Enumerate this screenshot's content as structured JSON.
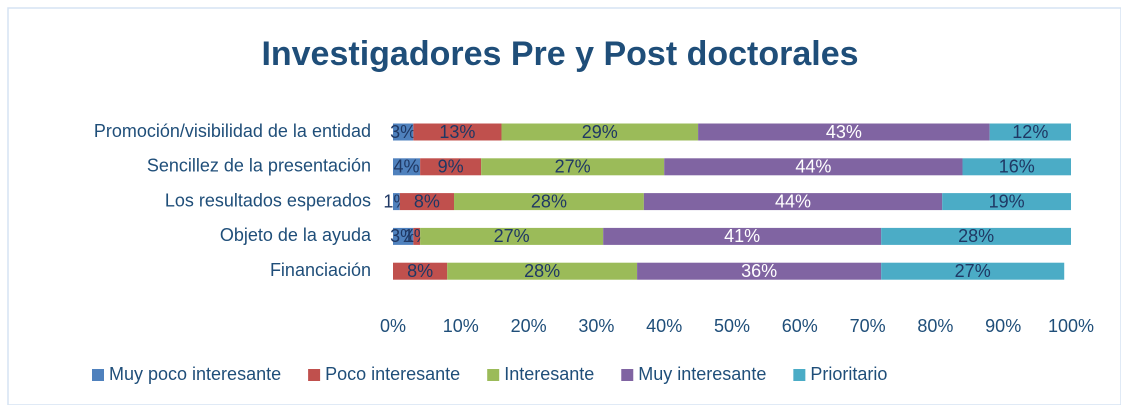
{
  "chart_data": {
    "type": "stacked_bar_horizontal",
    "title": "Investigadores Pre y Post doctorales",
    "categories": [
      "Promoción/visibilidad de la entidad",
      "Sencillez de la presentación",
      "Los resultados esperados",
      "Objeto de la ayuda",
      "Financiación"
    ],
    "series": [
      {
        "name": "Muy poco interesante",
        "color": "#4f81bd",
        "label_color": "#1f3864",
        "values": [
          3,
          4,
          1,
          3,
          0
        ],
        "value_labels": [
          "3%",
          "4%",
          "1%",
          "3%",
          null
        ]
      },
      {
        "name": "Poco interesante",
        "color": "#c0504d",
        "label_color": "#1f3864",
        "values": [
          13,
          9,
          8,
          1,
          8
        ],
        "value_labels": [
          "13%",
          "9%",
          "8%",
          "1%",
          "8%"
        ]
      },
      {
        "name": "Interesante",
        "color": "#9bbb59",
        "label_color": "#1f3864",
        "values": [
          29,
          27,
          28,
          27,
          28
        ],
        "value_labels": [
          "29%",
          "27%",
          "28%",
          "27%",
          "28%"
        ]
      },
      {
        "name": "Muy interesante",
        "color": "#8064a2",
        "label_color": "#ffffff",
        "values": [
          43,
          44,
          44,
          41,
          36
        ],
        "value_labels": [
          "43%",
          "44%",
          "44%",
          "41%",
          "36%"
        ]
      },
      {
        "name": "Prioritario",
        "color": "#4bacc6",
        "label_color": "#1f3864",
        "values": [
          12,
          16,
          19,
          28,
          27
        ],
        "value_labels": [
          "12%",
          "16%",
          "19%",
          "28%",
          "27%"
        ]
      }
    ],
    "xlim": [
      0,
      100
    ],
    "xticks": [
      {
        "value": 0,
        "label": "0%"
      },
      {
        "value": 10,
        "label": "10%"
      },
      {
        "value": 20,
        "label": "20%"
      },
      {
        "value": 30,
        "label": "30%"
      },
      {
        "value": 40,
        "label": "40%"
      },
      {
        "value": 50,
        "label": "50%"
      },
      {
        "value": 60,
        "label": "60%"
      },
      {
        "value": 70,
        "label": "70%"
      },
      {
        "value": 80,
        "label": "80%"
      },
      {
        "value": 90,
        "label": "90%"
      },
      {
        "value": 100,
        "label": "100%"
      }
    ],
    "legend": "bottom"
  }
}
